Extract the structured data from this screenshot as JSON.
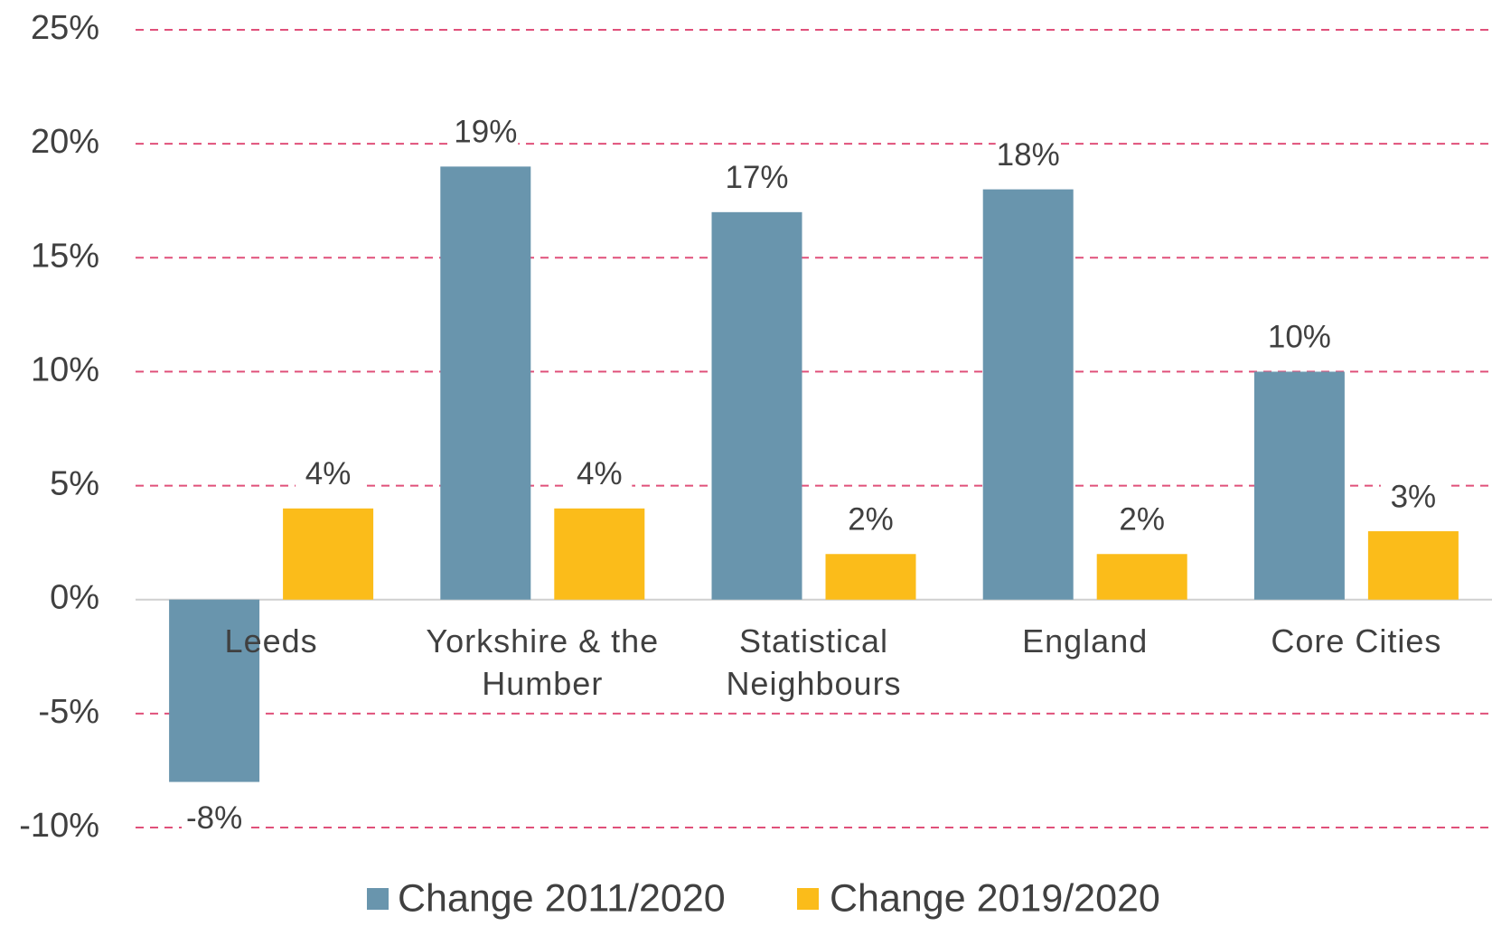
{
  "chart_data": {
    "type": "bar",
    "categories": [
      "Leeds",
      "Yorkshire & the Humber",
      "Statistical Neighbours",
      "England",
      "Core Cities"
    ],
    "series": [
      {
        "name": "Change 2011/2020",
        "color": "#6995ad",
        "values": [
          -8,
          19,
          17,
          18,
          10
        ],
        "value_labels": [
          "-8%",
          "19%",
          "17%",
          "18%",
          "10%"
        ]
      },
      {
        "name": "Change 2019/2020",
        "color": "#fbbc1a",
        "values": [
          4,
          4,
          2,
          2,
          3
        ],
        "value_labels": [
          "4%",
          "4%",
          "2%",
          "2%",
          "3%"
        ]
      }
    ],
    "ylim": [
      -10,
      25
    ],
    "yticks": [
      {
        "value": -10,
        "label": "-10%"
      },
      {
        "value": -5,
        "label": "-5%"
      },
      {
        "value": 0,
        "label": "0%"
      },
      {
        "value": 5,
        "label": "5%"
      },
      {
        "value": 10,
        "label": "10%"
      },
      {
        "value": 15,
        "label": "15%"
      },
      {
        "value": 20,
        "label": "20%"
      },
      {
        "value": 25,
        "label": "25%"
      }
    ],
    "grid": true,
    "legend": "bottom"
  }
}
